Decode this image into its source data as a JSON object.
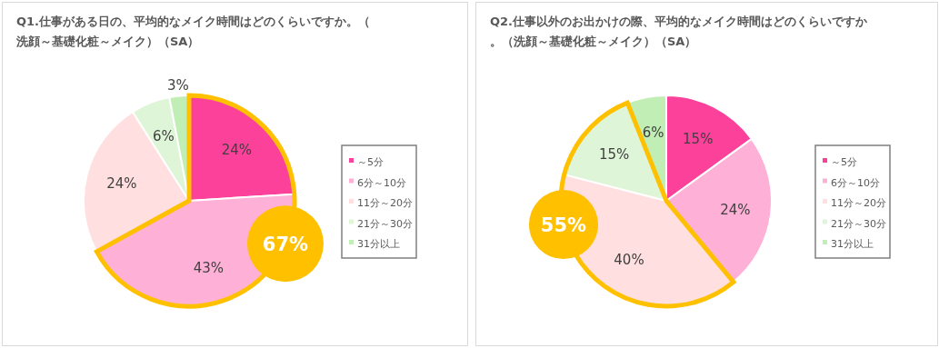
{
  "chart_data": [
    {
      "type": "pie",
      "title": "Q1.仕事がある日の、平均的なメイク時間はどのくらいですか。（洗顔～基礎化粧～メイク）（SA）",
      "categories": [
        "～5分",
        "6分～10分",
        "11分～20分",
        "21分～30分",
        "31分以上"
      ],
      "values": [
        24,
        43,
        24,
        6,
        3
      ],
      "value_labels": [
        "24%",
        "43%",
        "24%",
        "6%",
        "3%"
      ],
      "colors": [
        "#fc419b",
        "#ffb0d6",
        "#ffdfdf",
        "#dff5d8",
        "#c1eeb4"
      ],
      "legend": "right",
      "annotations": [
        "67%"
      ]
    },
    {
      "type": "pie",
      "title": "Q2.仕事以外のお出かけの際、平均的なメイク時間はどのくらいですか。（洗顔～基礎化粧～メイク）（SA）",
      "categories": [
        "～5分",
        "6分～10分",
        "11分～20分",
        "21分～30分",
        "31分以上"
      ],
      "values": [
        15,
        24,
        40,
        15,
        6
      ],
      "value_labels": [
        "15%",
        "24%",
        "40%",
        "15%",
        "6%"
      ],
      "colors": [
        "#fc419b",
        "#ffb0d6",
        "#ffdfdf",
        "#dff5d8",
        "#c1eeb4"
      ],
      "legend": "right",
      "annotations": [
        "55%"
      ]
    }
  ]
}
